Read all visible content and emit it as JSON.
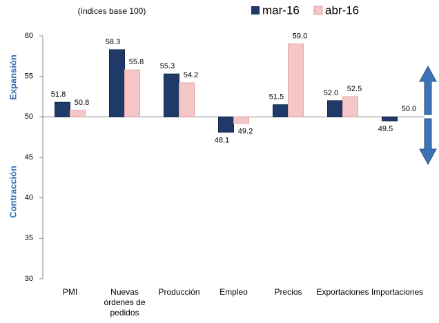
{
  "chart_data": {
    "type": "bar",
    "subtitle": "(índices base 100)",
    "categories": [
      "PMI",
      "Nuevas órdenes de pedidos",
      "Producción",
      "Empleo",
      "Precios",
      "Exportaciones",
      "Importaciones"
    ],
    "series": [
      {
        "name": "mar-16",
        "color": "#1f3a68",
        "values": [
          51.8,
          58.3,
          55.3,
          48.1,
          51.5,
          52.0,
          49.5
        ],
        "value_labels": [
          "51.8",
          "58.3",
          "55.3",
          "48.1",
          "51.5",
          "52.0",
          "49.5"
        ]
      },
      {
        "name": "abr-16",
        "color": "#f5c6c8",
        "values": [
          50.8,
          55.8,
          54.2,
          49.2,
          59.0,
          52.5,
          50.0
        ],
        "value_labels": [
          "50.8",
          "55.8",
          "54.2",
          "49.2",
          "59.0",
          "52.5",
          "50.0"
        ]
      }
    ],
    "baseline": 50,
    "ylim": [
      30,
      60
    ],
    "yticks": [
      30,
      35,
      40,
      45,
      50,
      55,
      60
    ],
    "annotations": [
      "Expansión",
      "Contracción"
    ],
    "grid": false
  }
}
